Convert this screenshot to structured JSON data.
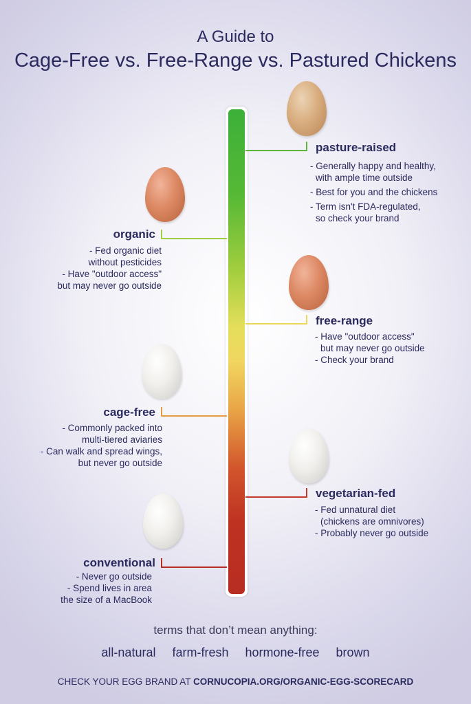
{
  "title": {
    "line1": "A Guide to",
    "line2": "Cage-Free vs. Free-Range vs. Pastured Chickens"
  },
  "scale_colors": {
    "top": "#3cb039",
    "middle": "#e4de5b",
    "bottom": "#b82d22"
  },
  "categories": {
    "pasture_raised": {
      "name": "pasture-raised",
      "egg": "brown-egg",
      "bullets": [
        "- Generally happy and healthy,",
        "with ample time outside",
        "- Best for you and the chickens",
        "- Term isn't FDA-regulated,",
        "so check your brand"
      ]
    },
    "organic": {
      "name": "organic",
      "egg": "brown-egg",
      "bullets": [
        "- Fed organic diet",
        "without pesticides",
        "- Have \"outdoor access\"",
        "but may never go outside"
      ]
    },
    "free_range": {
      "name": "free-range",
      "egg": "brown-egg",
      "bullets": [
        "- Have \"outdoor access\"",
        "but may never go outside",
        "- Check your brand"
      ]
    },
    "cage_free": {
      "name": "cage-free",
      "egg": "white-egg",
      "bullets": [
        "- Commonly packed into",
        "multi-tiered aviaries",
        "- Can walk and spread wings,",
        "but never go outside"
      ]
    },
    "vegetarian_fed": {
      "name": "vegetarian-fed",
      "egg": "white-egg",
      "bullets": [
        "- Fed unnatural diet",
        "(chickens are omnivores)",
        "- Probably never go outside"
      ]
    },
    "conventional": {
      "name": "conventional",
      "egg": "white-egg",
      "bullets": [
        "- Never go outside",
        "- Spend lives in area",
        "the size of a MacBook"
      ]
    }
  },
  "meaningless": {
    "heading": "terms that don’t mean anything:",
    "terms": [
      "all-natural",
      "farm-fresh",
      "hormone-free",
      "brown"
    ]
  },
  "footer": {
    "prefix": "CHECK YOUR EGG BRAND AT ",
    "url": "CORNUCOPIA.ORG/ORGANIC-EGG-SCORECARD"
  }
}
